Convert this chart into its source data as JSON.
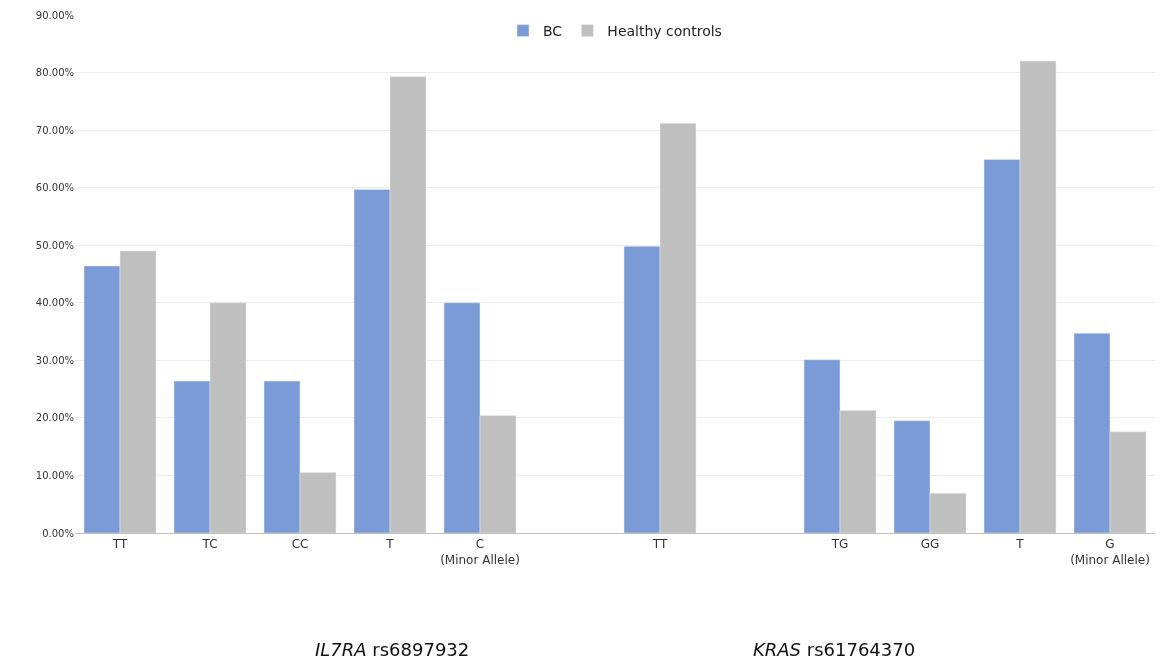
{
  "chart_data": {
    "type": "bar",
    "categories": [
      "TT",
      "TC",
      "CC",
      "T",
      "C (Minor Allele)",
      null,
      "TT",
      null,
      "TG",
      "GG",
      "T",
      "G (Minor Allele)"
    ],
    "series": [
      {
        "name": "BC",
        "color": "#7b9bd6",
        "values": [
          46.4,
          26.4,
          26.4,
          59.7,
          40.0,
          null,
          49.8,
          null,
          30.1,
          19.5,
          64.9,
          34.7
        ]
      },
      {
        "name": "Healthy controls",
        "color": "#bfbfbf",
        "values": [
          49.0,
          40.0,
          10.5,
          79.3,
          20.4,
          null,
          71.2,
          null,
          21.3,
          6.9,
          82.0,
          17.6
        ]
      }
    ],
    "ylim": [
      0,
      90
    ],
    "yticks": [
      {
        "value": 0,
        "label": "0.00%"
      },
      {
        "value": 10,
        "label": "10.00%"
      },
      {
        "value": 20,
        "label": "20.00%"
      },
      {
        "value": 30,
        "label": "30.00%"
      },
      {
        "value": 40,
        "label": "40.00%"
      },
      {
        "value": 50,
        "label": "50.00%"
      },
      {
        "value": 60,
        "label": "60.00%"
      },
      {
        "value": 70,
        "label": "70.00%"
      },
      {
        "value": 80,
        "label": "80.00%"
      },
      {
        "value": 90,
        "label": "90.00%"
      }
    ],
    "grid": "y",
    "legend": "top",
    "annotations": [
      "IL7RA rs6897932",
      "KRAS rs61764370"
    ]
  }
}
